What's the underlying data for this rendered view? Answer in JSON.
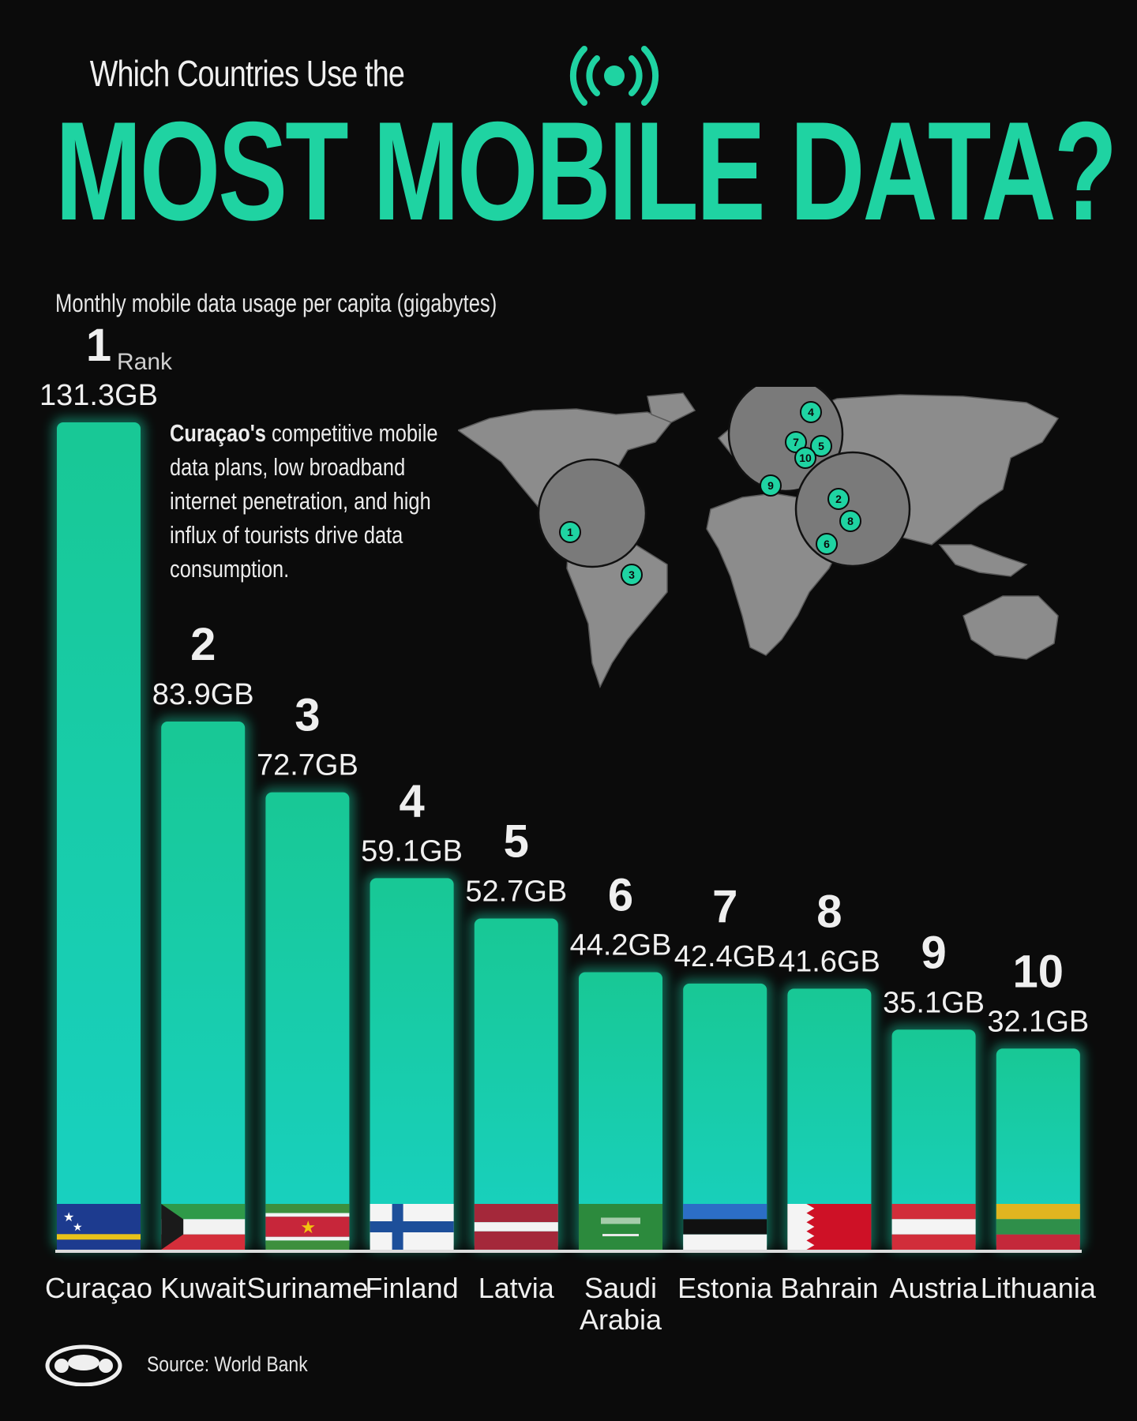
{
  "header": {
    "kicker": "Which Countries Use the",
    "headline": "MOST MOBILE DATA?",
    "subtitle": "Monthly mobile data usage per capita (gigabytes)"
  },
  "annotation": {
    "bold": "Curaçao's",
    "text": " competitive mobile data plans, low broadband internet penetration, and high influx of tourists drive data consumption."
  },
  "legend": {
    "rank_label": "Rank"
  },
  "footer": {
    "source": "Source: World Bank"
  },
  "colors": {
    "accent": "#1fd3a2",
    "background": "#0b0b0b",
    "map_land": "#8c8c8c"
  },
  "map_markers": [
    "1",
    "2",
    "3",
    "4",
    "5",
    "6",
    "7",
    "8",
    "9",
    "10"
  ],
  "chart_data": {
    "type": "bar",
    "title": "MOST MOBILE DATA?",
    "ylabel": "Monthly mobile data usage per capita (gigabytes)",
    "ylim": [
      0,
      131.3
    ],
    "categories": [
      "Curaçao",
      "Kuwait",
      "Suriname",
      "Finland",
      "Latvia",
      "Saudi Arabia",
      "Estonia",
      "Bahrain",
      "Austria",
      "Lithuania"
    ],
    "ranks": [
      "1",
      "2",
      "3",
      "4",
      "5",
      "6",
      "7",
      "8",
      "9",
      "10"
    ],
    "values": [
      131.3,
      83.9,
      72.7,
      59.1,
      52.7,
      44.2,
      42.4,
      41.6,
      35.1,
      32.1
    ],
    "value_labels": [
      "131.3GB",
      "83.9GB",
      "72.7GB",
      "59.1GB",
      "52.7GB",
      "44.2GB",
      "42.4GB",
      "41.6GB",
      "35.1GB",
      "32.1GB"
    ],
    "flags": [
      "flag-curacao",
      "flag-kuwait",
      "flag-suriname",
      "flag-finland",
      "flag-latvia",
      "flag-saudi-arabia",
      "flag-estonia",
      "flag-bahrain",
      "flag-austria",
      "flag-lithuania"
    ],
    "grid": false
  }
}
